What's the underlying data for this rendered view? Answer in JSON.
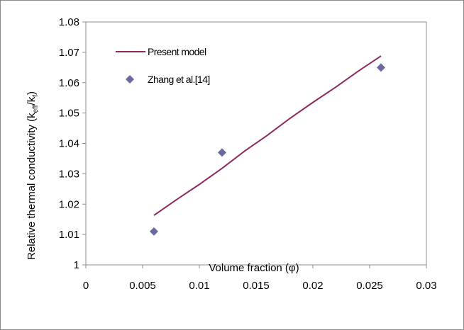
{
  "chart_data": {
    "type": "line",
    "title": "",
    "xlabel": "Volume fraction (φ)",
    "ylabel_main": "Relative thermal conductivity (k",
    "ylabel_sub1": "eff",
    "ylabel_mid": "/k",
    "ylabel_sub2": "f",
    "ylabel_end": ")",
    "xlim": [
      0,
      0.03
    ],
    "ylim": [
      1,
      1.08
    ],
    "x_ticks": [
      "0",
      "0.005",
      "0.01",
      "0.015",
      "0.02",
      "0.025",
      "0.03"
    ],
    "y_ticks": [
      "1",
      "1.01",
      "1.02",
      "1.03",
      "1.04",
      "1.05",
      "1.06",
      "1.07",
      "1.08"
    ],
    "grid": false,
    "legend_position": "top-left",
    "series": [
      {
        "name": "Present model",
        "kind": "line",
        "color": "#8b2a5f",
        "x": [
          0.006,
          0.008,
          0.01,
          0.012,
          0.014,
          0.016,
          0.018,
          0.02,
          0.022,
          0.024,
          0.026
        ],
        "y": [
          1.0163,
          1.0215,
          1.0265,
          1.0318,
          1.0375,
          1.0427,
          1.0483,
          1.0535,
          1.0585,
          1.0638,
          1.0688
        ]
      },
      {
        "name": "Zhang et al.[14]",
        "kind": "scatter",
        "marker": "diamond",
        "color": "#6a6aa0",
        "x": [
          0.006,
          0.012,
          0.026
        ],
        "y": [
          1.011,
          1.037,
          1.065
        ]
      }
    ]
  }
}
